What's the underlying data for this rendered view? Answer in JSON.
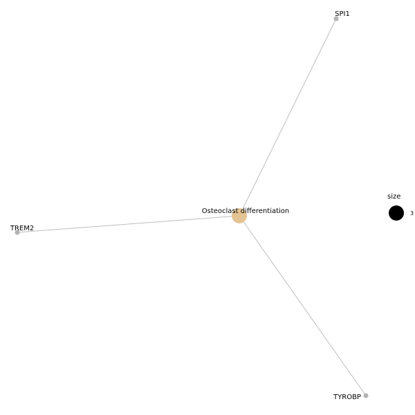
{
  "network": {
    "hub": {
      "label": "Osteoclast differentiation",
      "color": "#e5c494"
    },
    "genes": [
      {
        "label": "SPI1"
      },
      {
        "label": "TREM2"
      },
      {
        "label": "TYROBP"
      }
    ],
    "gene_color": "#b3b3b3",
    "edge_color": "#bdbdbd"
  },
  "legend": {
    "title": "size",
    "value": "3",
    "color": "#000000"
  }
}
